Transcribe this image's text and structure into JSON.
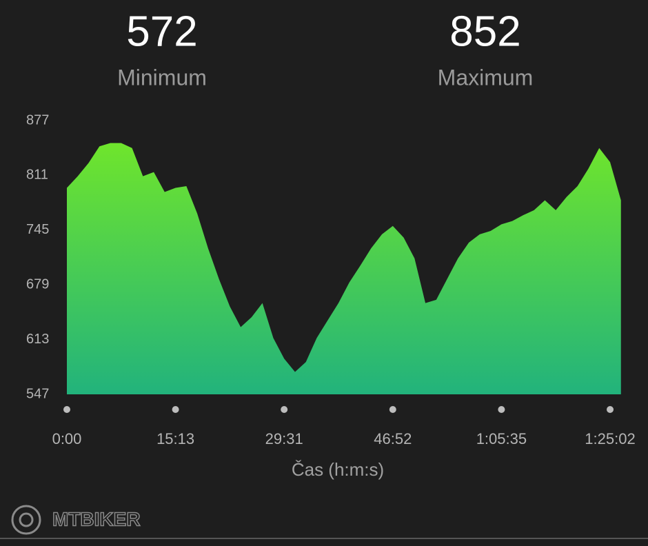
{
  "chart_data": {
    "type": "area",
    "stats": [
      {
        "value": 572,
        "label": "Minimum"
      },
      {
        "value": 852,
        "label": "Maximum"
      }
    ],
    "x_label": "Čas (h:m:s)",
    "categories": [
      "0:00",
      null,
      null,
      null,
      null,
      null,
      null,
      null,
      null,
      null,
      "15:13",
      null,
      null,
      null,
      null,
      null,
      null,
      null,
      null,
      null,
      "29:31",
      null,
      null,
      null,
      null,
      null,
      null,
      null,
      null,
      null,
      "46:52",
      null,
      null,
      null,
      null,
      null,
      null,
      null,
      null,
      null,
      "1:05:35",
      null,
      null,
      null,
      null,
      null,
      null,
      null,
      null,
      null,
      "1:25:02",
      null
    ],
    "values": [
      796,
      810,
      826,
      846,
      850,
      850,
      844,
      810,
      815,
      791,
      796,
      798,
      765,
      723,
      686,
      653,
      628,
      640,
      657,
      615,
      590,
      574,
      586,
      615,
      636,
      657,
      682,
      702,
      723,
      740,
      750,
      736,
      711,
      657,
      661,
      686,
      711,
      730,
      740,
      744,
      752,
      756,
      763,
      769,
      781,
      769,
      785,
      798,
      819,
      844,
      827,
      781
    ],
    "ylim": [
      547,
      877
    ],
    "yticks": [
      547,
      613,
      679,
      745,
      811,
      877
    ],
    "color_top": "#6fe52c",
    "color_bottom": "#22b37c",
    "watermark": "MTBIKER"
  }
}
